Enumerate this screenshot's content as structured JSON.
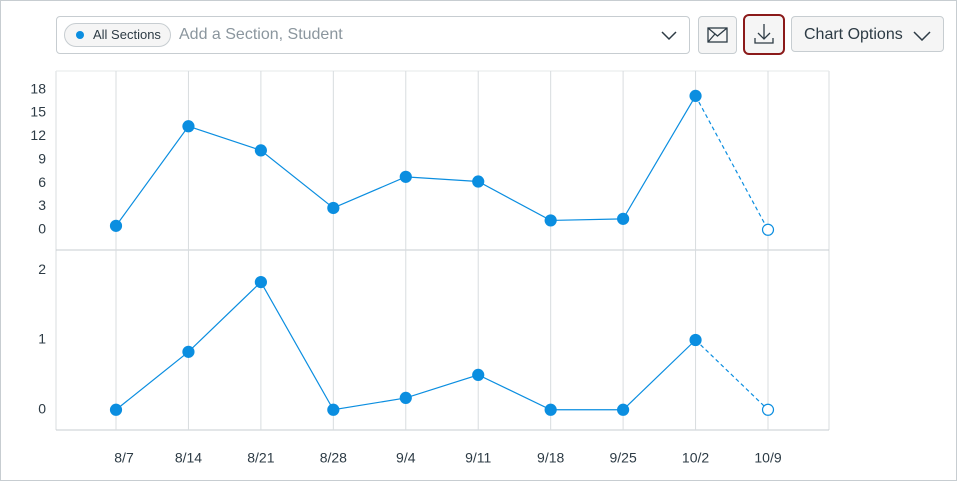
{
  "toolbar": {
    "filter_pill": "All Sections",
    "search_placeholder": "Add a Section, Student",
    "chart_options": "Chart Options"
  },
  "chart_data": [
    {
      "type": "line",
      "color": "#0b8ee0",
      "grid": true,
      "last_point_style": "hollow",
      "values": [
        0.5,
        13.3,
        10.2,
        2.8,
        6.8,
        6.2,
        1.2,
        1.4,
        17.2,
        0
      ],
      "ylim": [
        -2.6,
        20.4
      ],
      "yticks": [
        0,
        3,
        6,
        9,
        12,
        15,
        18
      ]
    },
    {
      "type": "line",
      "color": "#0b8ee0",
      "grid": true,
      "last_point_style": "hollow",
      "categories": [
        "8/7",
        "8/14",
        "8/21",
        "8/28",
        "9/4",
        "9/11",
        "9/18",
        "9/25",
        "10/2",
        "10/9"
      ],
      "values": [
        0,
        0.83,
        1.83,
        0,
        0.17,
        0.5,
        0,
        0,
        1,
        0
      ],
      "ylim": [
        -0.29,
        2.29
      ],
      "yticks": [
        0,
        1,
        2
      ]
    }
  ]
}
